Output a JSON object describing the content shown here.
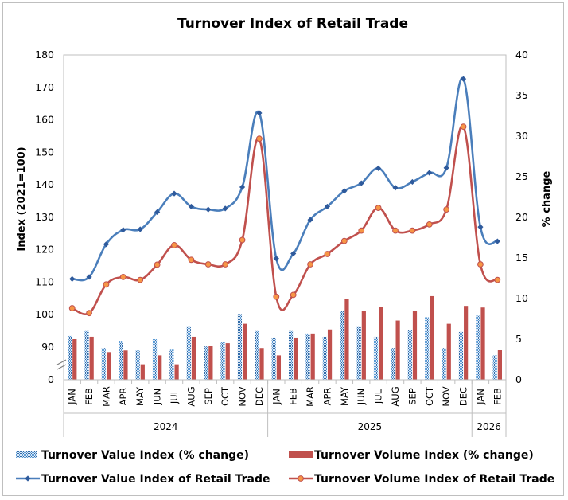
{
  "chart_data": {
    "type": "combo-bar-line",
    "title": "Turnover Index of Retail Trade",
    "ylabel_left": "Index (2021=100)",
    "ylabel_right": "% change",
    "y_left_ticks": [
      "180",
      "170",
      "160",
      "150",
      "140",
      "130",
      "120",
      "110",
      "100",
      "90",
      "0"
    ],
    "y_left_break": true,
    "y_left_range": [
      85,
      180
    ],
    "y_right_ticks": [
      "40",
      "35",
      "30",
      "25",
      "20",
      "15",
      "10",
      "5",
      "0"
    ],
    "y_right_range": [
      0,
      40
    ],
    "categories": [
      "JAN",
      "FEB",
      "MAR",
      "APR",
      "MAY",
      "JUN",
      "JUL",
      "AUG",
      "SEP",
      "OCT",
      "NOV",
      "DEC",
      "JAN",
      "FEB",
      "MAR",
      "APR",
      "MAY",
      "JUN",
      "JUL",
      "AUG",
      "SEP",
      "OCT",
      "NOV",
      "DEC",
      "JAN",
      "FEB"
    ],
    "years": [
      {
        "label": "2024",
        "span": 12
      },
      {
        "label": "2025",
        "span": 12
      },
      {
        "label": "2026",
        "span": 2
      }
    ],
    "series": [
      {
        "name": "Turnover Value Index (% change)",
        "kind": "bar",
        "axis": "right",
        "color": "#5b9bd5",
        "values": [
          5.4,
          6.0,
          3.9,
          4.8,
          3.6,
          5.0,
          3.8,
          6.5,
          4.1,
          4.7,
          8.0,
          6.0,
          5.2,
          6.0,
          5.7,
          5.3,
          8.5,
          6.5,
          5.3,
          3.9,
          6.1,
          7.7,
          3.9,
          5.9,
          7.9,
          3.0
        ]
      },
      {
        "name": "Turnover Volume Index (% change)",
        "kind": "bar",
        "axis": "right",
        "color": "#c0504d",
        "values": [
          5.0,
          5.3,
          3.4,
          3.6,
          1.9,
          3.0,
          1.9,
          5.3,
          4.2,
          4.5,
          6.9,
          3.9,
          3.0,
          5.2,
          5.7,
          6.2,
          10.0,
          8.5,
          9.0,
          7.3,
          8.5,
          10.3,
          6.9,
          9.1,
          8.9,
          3.7
        ]
      },
      {
        "name": "Turnover Value Index of Retail Trade",
        "kind": "line",
        "axis": "left",
        "color": "#4a7ebb",
        "values": [
          111.0,
          111.6,
          121.7,
          126.1,
          126.3,
          131.6,
          137.3,
          133.3,
          132.4,
          132.7,
          139.3,
          162.1,
          117.3,
          118.8,
          129.2,
          133.3,
          138.1,
          140.5,
          145.1,
          139.1,
          140.9,
          143.7,
          145.2,
          172.6,
          127.0,
          122.6
        ]
      },
      {
        "name": "Turnover Volume Index of Retail Trade",
        "kind": "line",
        "axis": "left",
        "color": "#c0504d",
        "values": [
          102.0,
          100.5,
          109.3,
          111.6,
          110.7,
          115.4,
          121.4,
          116.9,
          115.5,
          115.5,
          123.0,
          154.2,
          105.5,
          106.1,
          115.5,
          118.7,
          122.7,
          125.9,
          132.9,
          125.9,
          125.9,
          127.8,
          132.4,
          157.9,
          115.5,
          110.7
        ]
      }
    ],
    "legend": [
      "Turnover Value Index (% change)",
      "Turnover Volume Index (% change)",
      "Turnover Value Index of Retail Trade",
      "Turnover Volume Index of Retail Trade"
    ]
  }
}
